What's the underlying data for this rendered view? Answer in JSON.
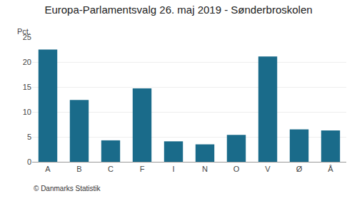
{
  "chart_data": {
    "type": "bar",
    "title": "Europa-Parlamentsvalg 26. maj 2019 - Sønderbroskolen",
    "ylabel": "Pct.",
    "annotations": [
      "© Danmarks Statistik"
    ],
    "categories": [
      "A",
      "B",
      "C",
      "F",
      "I",
      "N",
      "O",
      "V",
      "Ø",
      "Å"
    ],
    "values": [
      22.5,
      12.4,
      4.3,
      14.7,
      4.1,
      3.5,
      5.4,
      21.1,
      6.5,
      6.3
    ],
    "color": "#1a6b8a",
    "ylim": [
      0,
      25
    ],
    "yticks": [
      0,
      5,
      10,
      15,
      20,
      25
    ],
    "grid": true
  }
}
